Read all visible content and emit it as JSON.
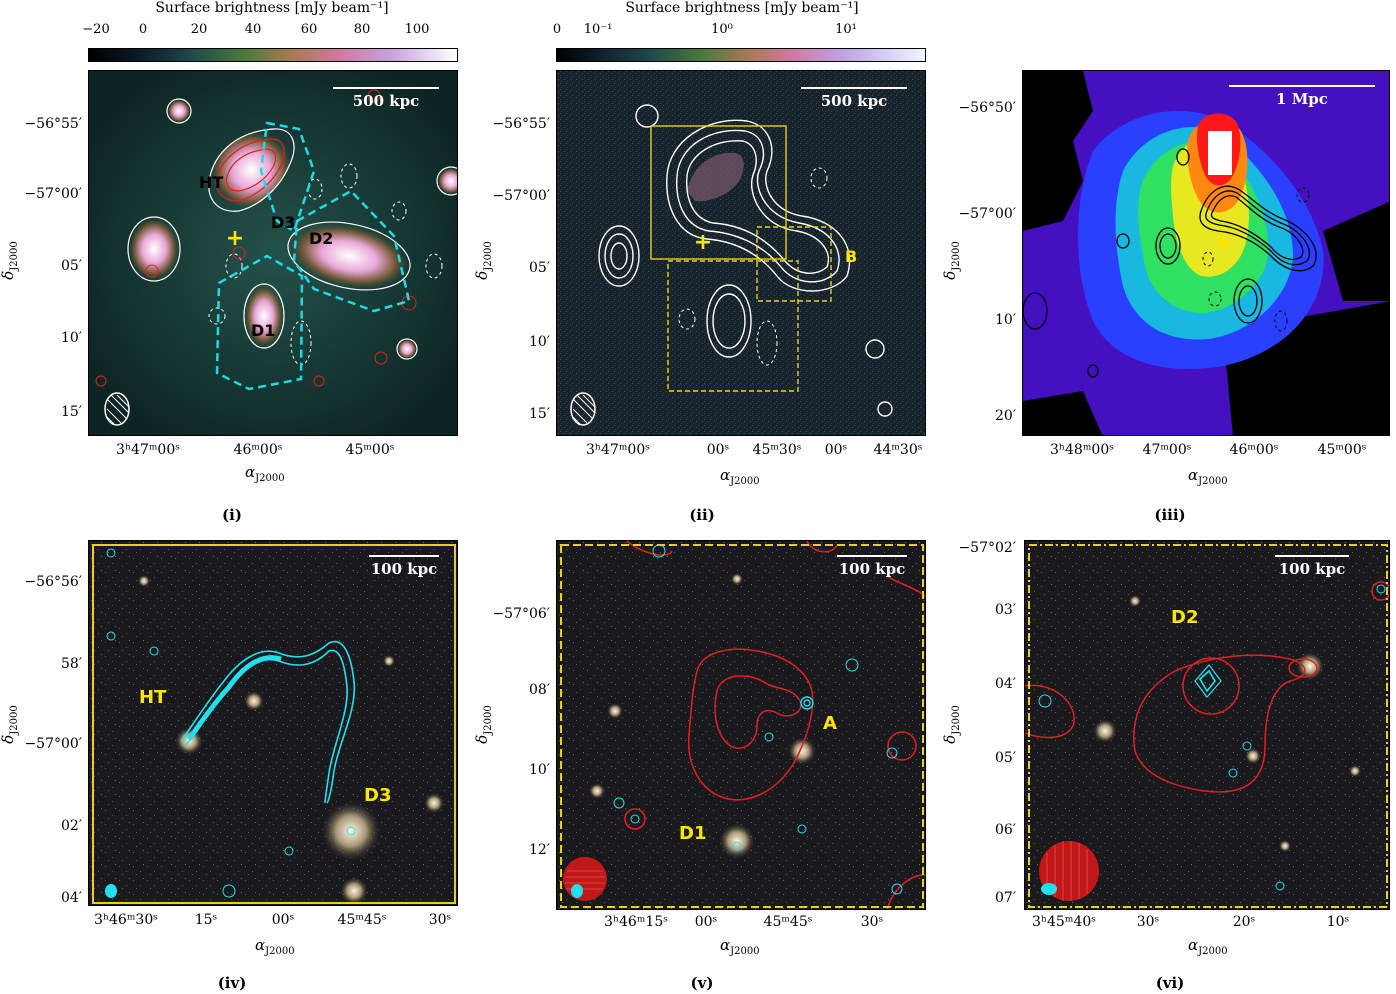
{
  "colorbars": {
    "left": {
      "title": "Surface brightness [mJy beam⁻¹]",
      "ticks": [
        "−20",
        "0",
        "20",
        "40",
        "60",
        "80",
        "100"
      ]
    },
    "middle": {
      "title": "Surface brightness [mJy beam⁻¹]",
      "ticks": [
        "0",
        "10⁻¹",
        "10⁰",
        "10¹"
      ]
    }
  },
  "axis_names": {
    "dec": "δ",
    "dec_sub": "J2000",
    "ra": "α",
    "ra_sub": "J2000"
  },
  "panels": {
    "p1": {
      "label": "(i)",
      "scale": "500 kpc",
      "yticks": [
        "−56°55′",
        "−57°00′",
        "05′",
        "10′",
        "15′"
      ],
      "xticks": [
        "3ʰ47ᵐ00ˢ",
        "46ᵐ00ˢ",
        "45ᵐ00ˢ"
      ],
      "sources": {
        "ht": "HT",
        "d3": "D3",
        "d2": "D2",
        "d1": "D1"
      }
    },
    "p2": {
      "label": "(ii)",
      "scale": "500 kpc",
      "yticks": [
        "−56°55′",
        "−57°00′",
        "05′",
        "10′",
        "15′"
      ],
      "xticks": [
        "3ʰ47ᵐ00ˢ",
        "00ˢ",
        "45ᵐ30ˢ",
        "00ˢ",
        "44ᵐ30ˢ"
      ],
      "sources": {
        "b": "B"
      }
    },
    "p3": {
      "label": "(iii)",
      "scale": "1 Mpc",
      "yticks": [
        "−56°50′",
        "−57°00′",
        "10′",
        "20′"
      ],
      "xticks": [
        "3ʰ48ᵐ00ˢ",
        "47ᵐ00ˢ",
        "46ᵐ00ˢ",
        "45ᵐ00ˢ"
      ]
    },
    "p4": {
      "label": "(iv)",
      "scale": "100 kpc",
      "yticks": [
        "−56°56′",
        "58′",
        "−57°00′",
        "02′",
        "04′"
      ],
      "xticks": [
        "3ʰ46ᵐ30ˢ",
        "15ˢ",
        "00ˢ",
        "45ᵐ45ˢ",
        "30ˢ"
      ],
      "sources": {
        "ht": "HT",
        "d3": "D3"
      }
    },
    "p5": {
      "label": "(v)",
      "scale": "100 kpc",
      "yticks": [
        "−57°06′",
        "08′",
        "10′",
        "12′"
      ],
      "xticks": [
        "3ʰ46ᵐ15ˢ",
        "00ˢ",
        "45ᵐ45ˢ",
        "30ˢ"
      ],
      "sources": {
        "a": "A",
        "d1": "D1"
      }
    },
    "p6": {
      "label": "(vi)",
      "scale": "100 kpc",
      "yticks": [
        "−57°02′",
        "03′",
        "04′",
        "05′",
        "06′",
        "07′"
      ],
      "xticks": [
        "3ʰ45ᵐ40ˢ",
        "30ˢ",
        "20ˢ",
        "10ˢ"
      ],
      "sources": {
        "d2": "D2"
      }
    }
  }
}
